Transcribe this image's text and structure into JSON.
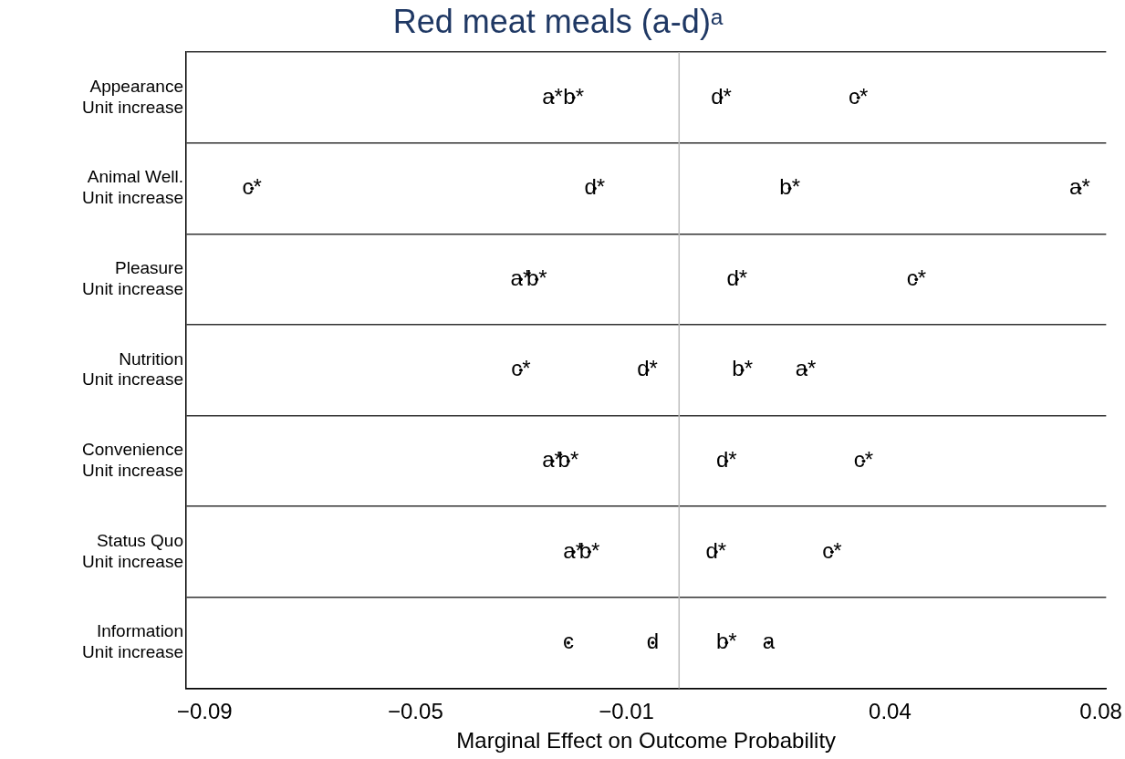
{
  "chart_data": {
    "type": "scatter",
    "title": "Red meat meals (a-d)ᵃ",
    "xlabel": "Marginal Effect on Outcome Probability",
    "categories": [
      "Appearance\nUnit increase",
      "Animal Well.\nUnit increase",
      "Pleasure\nUnit increase",
      "Nutrition\nUnit increase",
      "Convenience\nUnit increase",
      "Status Quo\nUnit increase",
      "Information\nUnit increase"
    ],
    "orientation": "horizontal",
    "grid": "y",
    "xlim": [
      -0.0935,
      0.081
    ],
    "xticks": [
      {
        "value": -0.09,
        "label": "−0.09"
      },
      {
        "value": -0.05,
        "label": "−0.05"
      },
      {
        "value": -0.01,
        "label": "−0.01"
      },
      {
        "value": 0.04,
        "label": "0.04"
      },
      {
        "value": 0.08,
        "label": "0.08"
      }
    ],
    "ref_lines": [
      {
        "axis": "x",
        "value": 0,
        "color": "#bdbdbd"
      }
    ],
    "series": [
      {
        "color": "#000000",
        "values": [
          -0.024,
          0.076,
          -0.03,
          0.024,
          -0.024,
          -0.02,
          0.017
        ],
        "value_labels": [
          "a*",
          "a*",
          "a*",
          "a*",
          "a*",
          "a*",
          "a"
        ]
      },
      {
        "color": "#000000",
        "values": [
          -0.02,
          0.021,
          -0.027,
          0.012,
          -0.021,
          -0.017,
          0.009
        ],
        "value_labels": [
          "b*",
          "b*",
          "b*",
          "b*",
          "b*",
          "b*",
          "b*"
        ]
      },
      {
        "color": "#000000",
        "values": [
          0.034,
          -0.081,
          0.045,
          -0.03,
          0.035,
          0.029,
          -0.021
        ],
        "value_labels": [
          "c*",
          "c*",
          "c*",
          "c*",
          "c*",
          "c*",
          "c"
        ]
      },
      {
        "color": "#000000",
        "values": [
          0.008,
          -0.016,
          0.011,
          -0.006,
          0.009,
          0.007,
          -0.005
        ],
        "value_labels": [
          "d*",
          "d*",
          "d*",
          "d*",
          "d*",
          "d*",
          "d"
        ]
      }
    ]
  }
}
